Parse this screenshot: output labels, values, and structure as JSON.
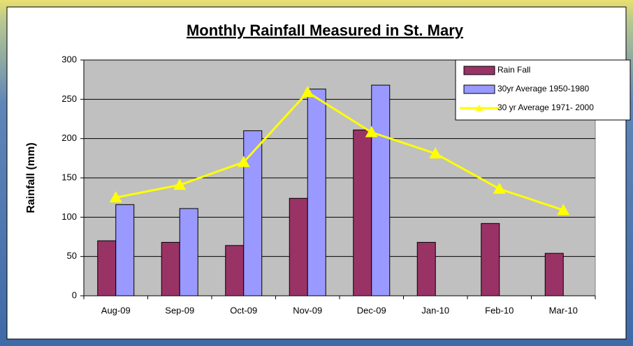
{
  "chart_data": {
    "type": "bar",
    "title": "Monthly Rainfall Measured in St. Mary",
    "y_label": "Rainfall (mm)",
    "categories": [
      "Aug-09",
      "Sep-09",
      "Oct-09",
      "Nov-09",
      "Dec-09",
      "Jan-10",
      "Feb-10",
      "Mar-10"
    ],
    "series": [
      {
        "name": "Rain Fall",
        "color": "#993366",
        "type": "bar",
        "values": [
          70,
          68,
          64,
          124,
          211,
          68,
          92,
          54
        ]
      },
      {
        "name": "30yr Average 1950-1980",
        "color": "#9999ff",
        "type": "bar",
        "values": [
          116,
          111,
          210,
          263,
          268,
          null,
          null,
          null
        ]
      },
      {
        "name": "30 yr  Average 1971- 2000",
        "color": "#ffff00",
        "type": "line",
        "values": [
          125,
          141,
          170,
          259,
          208,
          181,
          136,
          109
        ]
      }
    ],
    "ylim": [
      0,
      300
    ],
    "yticks": [
      0,
      50,
      100,
      150,
      200,
      250,
      300
    ],
    "grid": true,
    "legend": "upper right",
    "plot_background": "#c0c0c0"
  }
}
